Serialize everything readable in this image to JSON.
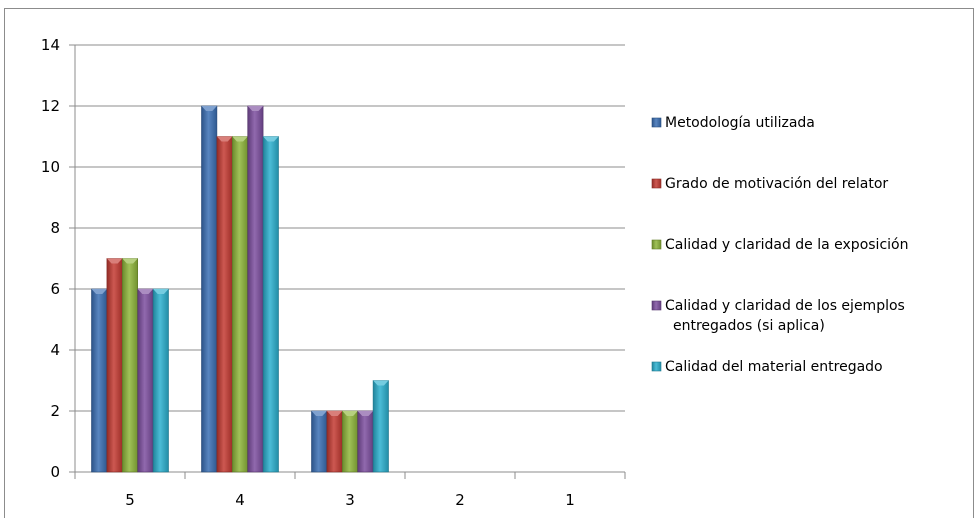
{
  "chart_data": {
    "type": "bar",
    "title": "",
    "xlabel": "",
    "ylabel": "",
    "categories": [
      "5",
      "4",
      "3",
      "2",
      "1"
    ],
    "ylim": [
      0,
      14
    ],
    "yticks": [
      "0",
      "2",
      "4",
      "6",
      "8",
      "10",
      "12",
      "14"
    ],
    "grid": true,
    "legend_position": "right",
    "series": [
      {
        "name": "Metodología utilizada",
        "color": "#3a6fb5",
        "values": [
          6,
          12,
          2,
          0,
          0
        ]
      },
      {
        "name": "Grado de motivación del relator",
        "color": "#c43a32",
        "values": [
          7,
          11,
          2,
          0,
          0
        ]
      },
      {
        "name": "Calidad y claridad de la exposición",
        "color": "#8fb63a",
        "values": [
          7,
          11,
          2,
          0,
          0
        ]
      },
      {
        "name": "Calidad y claridad de los ejemplos entregados (si aplica)",
        "name_lines": [
          "Calidad y claridad de los ejemplos",
          "entregados (si aplica)"
        ],
        "color": "#7d4fa0",
        "values": [
          6,
          12,
          2,
          0,
          0
        ]
      },
      {
        "name": "Calidad del material  entregado",
        "color": "#2bb0cf",
        "values": [
          6,
          11,
          3,
          0,
          0
        ]
      }
    ]
  }
}
